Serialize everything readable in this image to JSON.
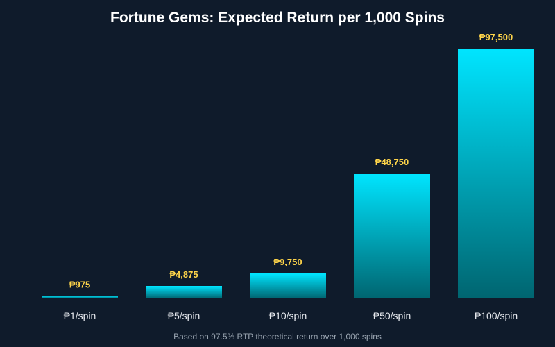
{
  "chart_data": {
    "type": "bar",
    "title": "Fortune Gems: Expected Return per 1,000 Spins",
    "subtitle": "Based on 97.5% RTP theoretical return over 1,000 spins",
    "categories": [
      "₱1/spin",
      "₱5/spin",
      "₱10/spin",
      "₱50/spin",
      "₱100/spin"
    ],
    "values": [
      975,
      4875,
      9750,
      48750,
      97500
    ],
    "data_labels": [
      "₱975",
      "₱4,875",
      "₱9,750",
      "₱48,750",
      "₱97,500"
    ],
    "ylim": [
      0,
      97500
    ],
    "grid": false,
    "colors": {
      "background": "#0f1b2b",
      "bar_top": "#00e5ff",
      "bar_bottom": "#006570",
      "value_label": "#ffd54a",
      "tick_label": "#e6e9ee",
      "title": "#ffffff",
      "note": "#9aa5b1"
    }
  }
}
